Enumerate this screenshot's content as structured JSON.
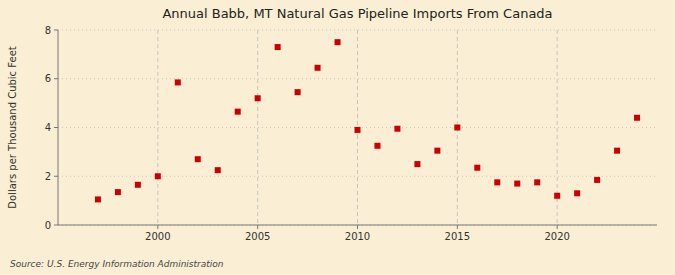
{
  "chart_data": {
    "type": "scatter",
    "title": "Annual Babb, MT Natural Gas Pipeline Imports From Canada",
    "y_label": "Dollars per Thousand Cubic Feet",
    "source": "Source: U.S. Energy Information Administration",
    "x": [
      1997,
      1998,
      1999,
      2000,
      2001,
      2002,
      2003,
      2004,
      2005,
      2006,
      2007,
      2008,
      2009,
      2010,
      2011,
      2012,
      2013,
      2014,
      2015,
      2016,
      2017,
      2018,
      2019,
      2020,
      2021,
      2022,
      2023,
      2024
    ],
    "values": [
      1.05,
      1.35,
      1.65,
      2.0,
      5.85,
      2.7,
      2.25,
      4.65,
      5.2,
      7.3,
      5.45,
      6.45,
      7.5,
      3.9,
      3.25,
      3.95,
      2.5,
      3.05,
      4.0,
      2.35,
      1.75,
      1.7,
      1.75,
      1.2,
      1.3,
      1.85,
      3.05,
      4.4
    ],
    "color": "#cc0000",
    "marker": "square",
    "xlim": [
      1995,
      2025
    ],
    "ylim": [
      0,
      8
    ],
    "xticks": [
      2000,
      2005,
      2010,
      2015,
      2020
    ],
    "yticks": [
      0,
      2,
      4,
      6,
      8
    ],
    "grid": true
  }
}
